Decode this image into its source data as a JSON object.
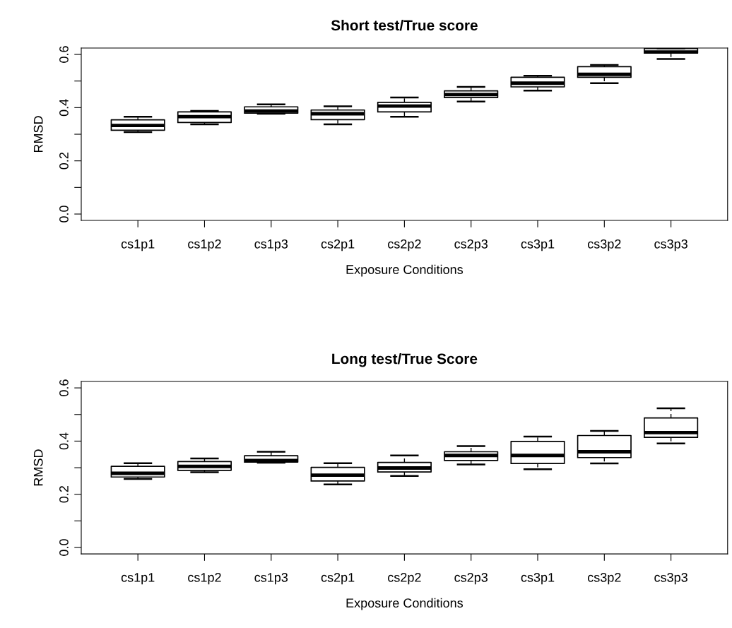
{
  "chart_data": [
    {
      "type": "box",
      "title": "Short test/True score",
      "xlabel": "Exposure Conditions",
      "ylabel": "RMSD",
      "categories": [
        "cs1p1",
        "cs1p2",
        "cs1p3",
        "cs2p1",
        "cs2p2",
        "cs2p3",
        "cs3p1",
        "cs3p2",
        "cs3p3"
      ],
      "boxes": [
        {
          "low": 0.308,
          "q1": 0.315,
          "median": 0.333,
          "q3": 0.354,
          "high": 0.366
        },
        {
          "low": 0.337,
          "q1": 0.344,
          "median": 0.366,
          "q3": 0.384,
          "high": 0.388
        },
        {
          "low": 0.377,
          "q1": 0.379,
          "median": 0.387,
          "q3": 0.403,
          "high": 0.412
        },
        {
          "low": 0.337,
          "q1": 0.355,
          "median": 0.377,
          "q3": 0.391,
          "high": 0.405
        },
        {
          "low": 0.366,
          "q1": 0.384,
          "median": 0.406,
          "q3": 0.42,
          "high": 0.438
        },
        {
          "low": 0.423,
          "q1": 0.438,
          "median": 0.449,
          "q3": 0.463,
          "high": 0.478
        },
        {
          "low": 0.464,
          "q1": 0.478,
          "median": 0.492,
          "q3": 0.514,
          "high": 0.52
        },
        {
          "low": 0.492,
          "q1": 0.514,
          "median": 0.525,
          "q3": 0.554,
          "high": 0.56
        },
        {
          "low": 0.583,
          "q1": 0.605,
          "median": 0.609,
          "q3": 0.622,
          "high": 0.623
        }
      ],
      "color": "#000000",
      "ylim": [
        -0.024,
        0.624
      ],
      "yticks": [
        {
          "value": 0,
          "label": "0.0"
        },
        {
          "value": 0.1,
          "label": null
        },
        0.2,
        {
          "value": 0.3,
          "label": null
        },
        0.4,
        {
          "value": 0.5,
          "label": null
        },
        0.6
      ],
      "grid": false
    },
    {
      "type": "box",
      "title": "Long test/True Score",
      "xlabel": "Exposure Conditions",
      "ylabel": "RMSD",
      "categories": [
        "cs1p1",
        "cs1p2",
        "cs1p3",
        "cs2p1",
        "cs2p2",
        "cs2p3",
        "cs3p1",
        "cs3p2",
        "cs3p3"
      ],
      "boxes": [
        {
          "low": 0.258,
          "q1": 0.265,
          "median": 0.279,
          "q3": 0.305,
          "high": 0.317
        },
        {
          "low": 0.283,
          "q1": 0.29,
          "median": 0.305,
          "q3": 0.323,
          "high": 0.335
        },
        {
          "low": 0.319,
          "q1": 0.321,
          "median": 0.327,
          "q3": 0.345,
          "high": 0.36
        },
        {
          "low": 0.237,
          "q1": 0.25,
          "median": 0.272,
          "q3": 0.301,
          "high": 0.317
        },
        {
          "low": 0.269,
          "q1": 0.284,
          "median": 0.299,
          "q3": 0.32,
          "high": 0.346
        },
        {
          "low": 0.312,
          "q1": 0.327,
          "median": 0.346,
          "q3": 0.36,
          "high": 0.381
        },
        {
          "low": 0.294,
          "q1": 0.316,
          "median": 0.346,
          "q3": 0.399,
          "high": 0.417
        },
        {
          "low": 0.316,
          "q1": 0.338,
          "median": 0.36,
          "q3": 0.421,
          "high": 0.438
        },
        {
          "low": 0.391,
          "q1": 0.414,
          "median": 0.432,
          "q3": 0.487,
          "high": 0.523
        }
      ],
      "color": "#000000",
      "ylim": [
        -0.024,
        0.624
      ],
      "yticks": [
        {
          "value": 0,
          "label": "0.0"
        },
        {
          "value": 0.1,
          "label": null
        },
        0.2,
        {
          "value": 0.3,
          "label": null
        },
        0.4,
        {
          "value": 0.5,
          "label": null
        },
        0.6
      ],
      "grid": false
    }
  ]
}
